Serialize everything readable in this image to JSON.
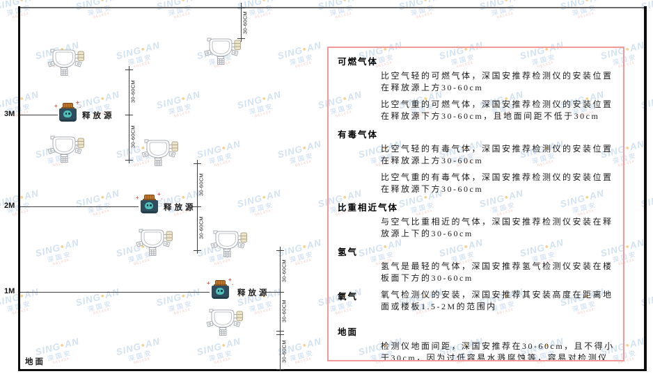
{
  "watermark": {
    "brand_left": "SING",
    "dot": "●",
    "brand_right": "AN",
    "brand_sub": "深国安",
    "code": "661434"
  },
  "diagram": {
    "axis": {
      "m3": "3M",
      "m2": "2M",
      "m1": "1M"
    },
    "ground_label": "地面",
    "source_label": "释放源",
    "dim_label": "30-60CM"
  },
  "panel": {
    "sections": [
      {
        "heading": "可燃气体",
        "paragraphs": [
          "比空气轻的可燃气体，深国安推荐检测仪的安装位置在释放源上方30-60cm",
          "比空气重的可燃气体，深国安推荐检测仪的安装位置在释放源下方30-60cm，且地面间距不低于30cm"
        ]
      },
      {
        "heading": "有毒气体",
        "paragraphs": [
          "比空气轻的有毒气体，深国安推荐检测仪的安装位置在释放源上方30-60cm",
          "比空气重的有毒气体，深国安推荐检测仪的安装位置在释放源下方30-60cm"
        ]
      },
      {
        "heading": "比重相近气体",
        "paragraphs": [
          "与空气比重相近的气体，深国安推荐检测仪安装在释放源上下的30-60cm"
        ]
      },
      {
        "heading": "氢气",
        "paragraphs": [
          "氢气是最轻的气体，深国安推荐氢气检测仪安装在楼板面下方的30-60cm"
        ]
      },
      {
        "heading": "氧气",
        "paragraphs": [
          "氧气检测仪的安装，深国安推荐其安装高度在距离地面或楼板1.5-2M的范围内"
        ]
      },
      {
        "heading": "地面",
        "paragraphs": [
          "检测仪地面间距，深国安推荐在30-60cm，且不得小于30cm，因为过低容易水溅腐蚀等，容易对检测仪造成伤害"
        ]
      }
    ]
  }
}
